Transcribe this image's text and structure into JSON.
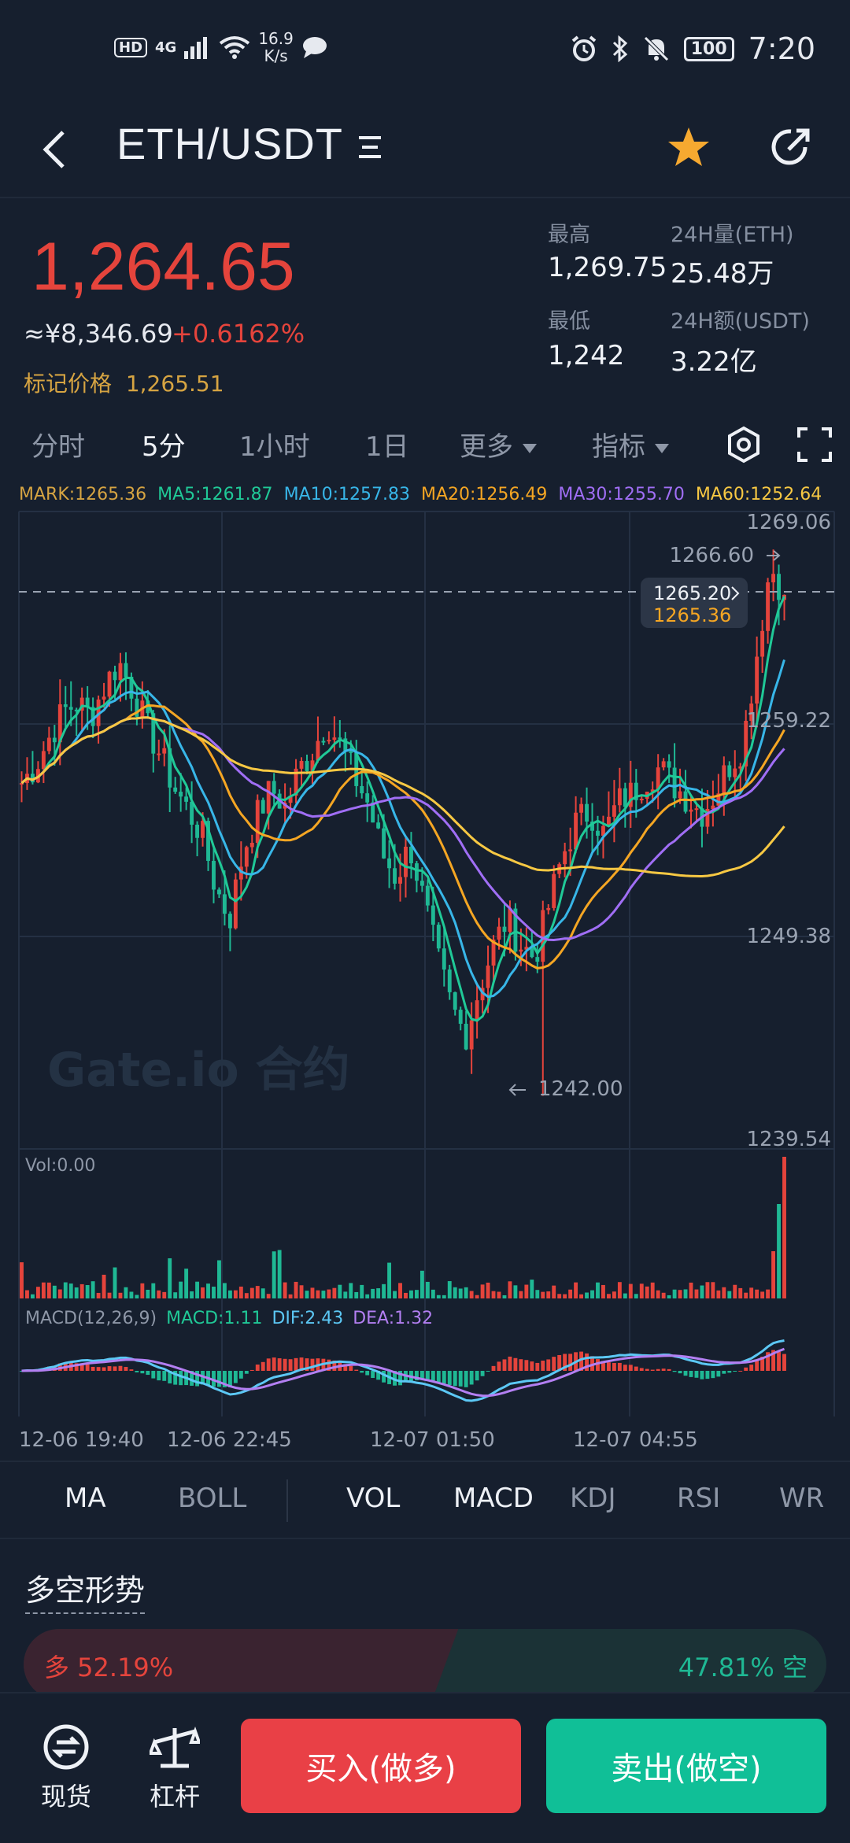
{
  "status_bar": {
    "hd": "HD",
    "net": "4G",
    "speed_value": "16.9",
    "speed_unit": "K/s",
    "battery": "100",
    "time": "7:20"
  },
  "header": {
    "pair": "ETH/USDT",
    "pair_icon": "menu-lines-icon",
    "star_color": "#f6a930"
  },
  "ticker": {
    "last_price": "1,264.65",
    "cny_price": "≈¥8,346.69",
    "change_pct": "+0.6162%",
    "mark_label": "标记价格",
    "mark_value": "1,265.51",
    "high_label": "最高",
    "high_value": "1,269.75",
    "low_label": "最低",
    "low_value": "1,242",
    "vol_label": "24H量(ETH)",
    "vol_value": "25.48万",
    "amt_label": "24H额(USDT)",
    "amt_value": "3.22亿"
  },
  "tabs": {
    "t1": "分时",
    "t2": "5分",
    "t3": "1小时",
    "t4": "1日",
    "t5": "更多",
    "t6": "指标"
  },
  "ma_legend": {
    "mark": "MARK:1265.36",
    "ma5": "MA5:1261.87",
    "ma10": "MA10:1257.83",
    "ma20": "MA20:1256.49",
    "ma30": "MA30:1255.70",
    "ma60": "MA60:1252.64"
  },
  "colors": {
    "up": "#e5443c",
    "down": "#1fb894",
    "mark": "#d6a442",
    "ma5": "#20c997",
    "ma10": "#38b6e8",
    "ma20": "#f5a623",
    "ma30": "#a06ef5",
    "ma60": "#f7c843",
    "dif": "#5cc8f5",
    "dea": "#b37ff2"
  },
  "chart": {
    "y_labels": [
      "1269.06",
      "1259.22",
      "1249.38",
      "1239.54"
    ],
    "high_marker": "1266.60",
    "low_marker": "1242.00",
    "current_line": "1265.20",
    "current_mark": "1265.36",
    "watermark": "Gate.io 合约",
    "vol_label": "Vol:0.00",
    "macd_label": "MACD(12,26,9)",
    "macd_val": "MACD:1.11",
    "dif_val": "DIF:2.43",
    "dea_val": "DEA:1.32",
    "x_labels": [
      "12-06 19:40",
      "12-06 22:45",
      "12-07 01:50",
      "12-07 04:55"
    ]
  },
  "chart_data": {
    "type": "candlestick",
    "y_range": [
      1239.54,
      1269.06
    ],
    "high": 1266.6,
    "low": 1242.0,
    "last": 1265.2,
    "x_labels": [
      "12-06 19:40",
      "12-06 22:45",
      "12-07 01:50",
      "12-07 04:55"
    ],
    "close_path": [
      1256.5,
      1257.3,
      1258.6,
      1259.8,
      1260.2,
      1259.6,
      1261.0,
      1262.1,
      1260.8,
      1259.1,
      1257.8,
      1256.3,
      1255.2,
      1254.1,
      1251.6,
      1250.2,
      1253.4,
      1255.0,
      1256.2,
      1255.4,
      1257.1,
      1258.0,
      1259.4,
      1258.2,
      1256.8,
      1255.5,
      1253.2,
      1252.1,
      1253.6,
      1251.0,
      1248.3,
      1246.1,
      1244.8,
      1247.0,
      1248.9,
      1250.2,
      1249.0,
      1248.4,
      1250.8,
      1253.1,
      1254.7,
      1255.2,
      1254.1,
      1255.6,
      1256.0,
      1256.7,
      1257.2,
      1256.4,
      1255.8,
      1255.1,
      1256.0,
      1257.3,
      1258.2,
      1262.4,
      1266.6,
      1265.2
    ],
    "ma5_end": 1261.87,
    "ma10_end": 1257.83,
    "ma20_end": 1256.49,
    "ma30_end": 1255.7,
    "ma60_end": 1252.64,
    "macd": {
      "macd": 1.11,
      "dif": 2.43,
      "dea": 1.32
    }
  },
  "indicators": {
    "i1": "MA",
    "i2": "BOLL",
    "i3": "VOL",
    "i4": "MACD",
    "i5": "KDJ",
    "i6": "RSI",
    "i7": "WR"
  },
  "long_short": {
    "title": "多空形势",
    "long_text": "多 52.19%",
    "short_text": "47.81% 空",
    "long_pct": 52.19,
    "short_pct": 47.81
  },
  "bottom": {
    "spot_label": "现货",
    "lever_label": "杠杆",
    "buy_label": "买入(做多)",
    "sell_label": "卖出(做空)"
  }
}
